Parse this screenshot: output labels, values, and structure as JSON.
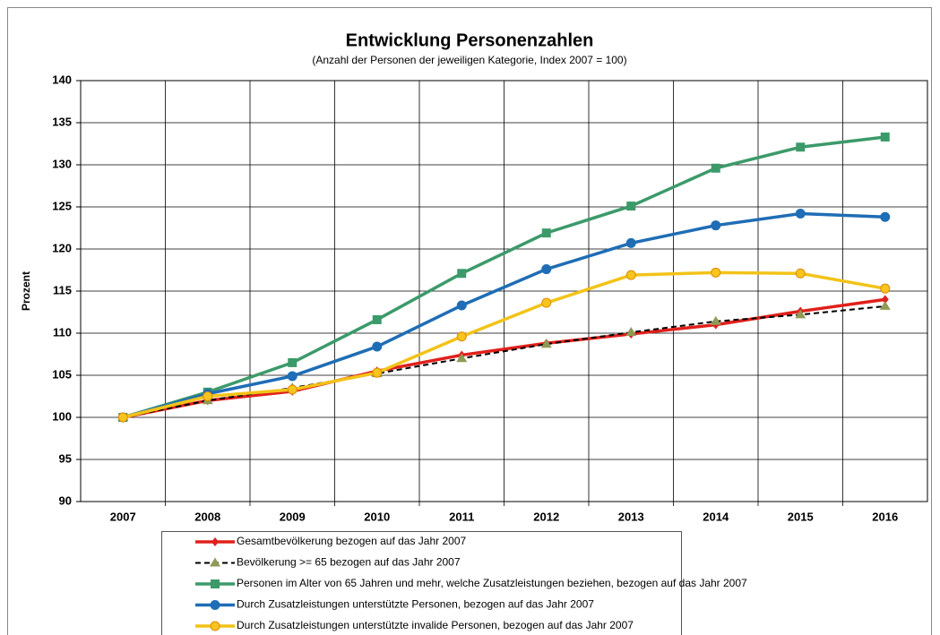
{
  "chart_data": {
    "type": "line",
    "title": "Entwicklung Personenzahlen",
    "subtitle": "(Anzahl der Personen der jeweiligen Kategorie, Index 2007 = 100)",
    "y_label": "Prozent",
    "categories": [
      "2007",
      "2008",
      "2009",
      "2010",
      "2011",
      "2012",
      "2013",
      "2014",
      "2015",
      "2016"
    ],
    "ylim": [
      90,
      140
    ],
    "yticks": [
      90,
      95,
      100,
      105,
      110,
      115,
      120,
      125,
      130,
      135,
      140
    ],
    "grid": true,
    "series": [
      {
        "name": "Gesamtbevölkerung bezogen auf das Jahr 2007",
        "color": "#e0201b",
        "marker": "diamond",
        "marker_color": "#e0201b",
        "dash": false,
        "values": [
          100,
          102,
          103.1,
          105.5,
          107.4,
          108.8,
          109.9,
          111,
          112.6,
          114
        ]
      },
      {
        "name": "Bevölkerung >= 65 bezogen auf das Jahr 2007",
        "color": "#000000",
        "marker": "triangle",
        "marker_color": "#8f9a55",
        "dash": true,
        "values": [
          100,
          102,
          103.5,
          105.2,
          107,
          108.7,
          110.1,
          111.4,
          112.2,
          113.2
        ]
      },
      {
        "name": "Personen im Alter von 65 Jahren und mehr, welche Zusatzleistungen beziehen, bezogen auf das Jahr 2007",
        "color": "#3c9a6a",
        "marker": "square",
        "marker_color": "#3c9a6a",
        "dash": false,
        "values": [
          100,
          103,
          106.5,
          111.6,
          117.1,
          121.9,
          125.1,
          129.6,
          132.1,
          133.3
        ]
      },
      {
        "name": "Durch Zusatzleistungen unterstützte Personen, bezogen auf das Jahr 2007",
        "color": "#1f6db5",
        "marker": "circle",
        "marker_color": "#1f6db5",
        "dash": false,
        "values": [
          100,
          102.8,
          104.9,
          108.4,
          113.3,
          117.6,
          120.7,
          122.8,
          124.2,
          123.8
        ]
      },
      {
        "name": "Durch Zusatzleistungen unterstützte invalide Personen, bezogen auf das Jahr 2007",
        "color": "#f2c318",
        "marker": "circle",
        "marker_color": "#f7c51e",
        "dash": false,
        "values": [
          100,
          102.5,
          103.3,
          105.3,
          109.6,
          113.6,
          116.9,
          117.2,
          117.1,
          115.3
        ]
      }
    ]
  }
}
